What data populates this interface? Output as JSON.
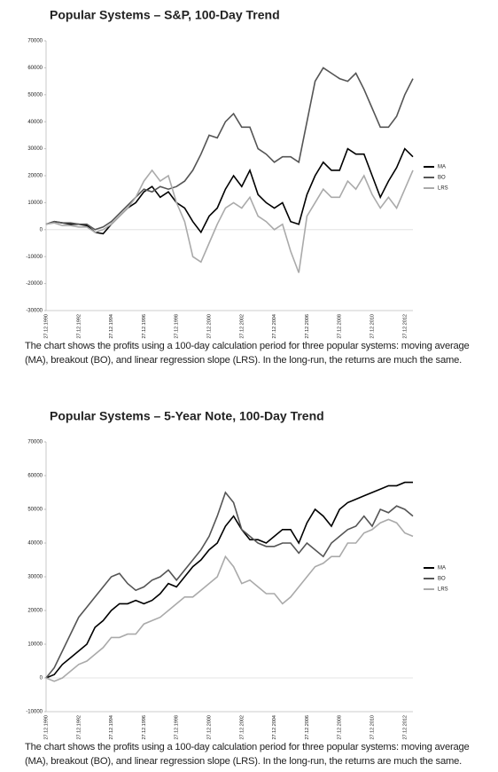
{
  "chart_data": [
    {
      "type": "line",
      "title": "Popular Systems – S&P, 100-Day Trend",
      "categories": [
        "27.12.1990",
        null,
        null,
        null,
        "27.12.1992",
        null,
        null,
        null,
        "27.12.1994",
        null,
        null,
        null,
        "27.12.1996",
        null,
        null,
        null,
        "27.12.1998",
        null,
        null,
        null,
        "27.12.2000",
        null,
        null,
        null,
        "27.12.2002",
        null,
        null,
        null,
        "27.12.2004",
        null,
        null,
        null,
        "27.12.2006",
        null,
        null,
        null,
        "27.12.2008",
        null,
        null,
        null,
        "27.12.2010",
        null,
        null,
        null,
        "27.12.2012",
        null
      ],
      "series": [
        {
          "name": "MA",
          "color": "#000000",
          "values": [
            2000,
            3000,
            2500,
            2000,
            2000,
            1500,
            -1000,
            -1500,
            2000,
            5000,
            8000,
            10000,
            14000,
            16000,
            12000,
            14000,
            10000,
            8000,
            3000,
            -1000,
            5000,
            8000,
            15000,
            20000,
            16000,
            22000,
            13000,
            10000,
            8000,
            10000,
            3000,
            2000,
            13000,
            20000,
            25000,
            22000,
            22000,
            30000,
            28000,
            28000,
            20000,
            12000,
            18000,
            23000,
            30000,
            27000
          ]
        },
        {
          "name": "BO",
          "color": "#555555",
          "values": [
            2000,
            3000,
            2500,
            2500,
            2000,
            2000,
            0,
            1000,
            3000,
            6000,
            9000,
            12000,
            15000,
            14000,
            16000,
            15000,
            16000,
            18000,
            22000,
            28000,
            35000,
            34000,
            40000,
            43000,
            38000,
            38000,
            30000,
            28000,
            25000,
            27000,
            27000,
            25000,
            40000,
            55000,
            60000,
            58000,
            56000,
            55000,
            58000,
            52000,
            45000,
            38000,
            38000,
            42000,
            50000,
            56000
          ]
        },
        {
          "name": "LRS",
          "color": "#aaaaaa",
          "values": [
            2000,
            2500,
            1500,
            1500,
            1000,
            1000,
            -1000,
            0,
            2000,
            5000,
            8000,
            12000,
            18000,
            22000,
            18000,
            20000,
            10000,
            3000,
            -10000,
            -12000,
            -5000,
            2000,
            8000,
            10000,
            8000,
            12000,
            5000,
            3000,
            0,
            2000,
            -8000,
            -16000,
            5000,
            10000,
            15000,
            12000,
            12000,
            18000,
            15000,
            20000,
            13000,
            8000,
            12000,
            8000,
            15000,
            22000
          ]
        }
      ],
      "ylim": [
        -30000,
        70000
      ],
      "yticks": [
        -30000,
        -20000,
        -10000,
        0,
        10000,
        20000,
        30000,
        40000,
        50000,
        60000,
        70000
      ],
      "grid": false,
      "legend": "right",
      "caption": "The chart shows the profits using a 100-day calculation period for three popular systems: moving average (MA), breakout (BO), and linear regression slope (LRS). In the long-run, the returns are much the same."
    },
    {
      "type": "line",
      "title": "Popular Systems – 5-Year Note, 100-Day Trend",
      "categories": [
        "27.12.1990",
        null,
        null,
        null,
        "27.12.1992",
        null,
        null,
        null,
        "27.12.1994",
        null,
        null,
        null,
        "27.12.1996",
        null,
        null,
        null,
        "27.12.1998",
        null,
        null,
        null,
        "27.12.2000",
        null,
        null,
        null,
        "27.12.2002",
        null,
        null,
        null,
        "27.12.2004",
        null,
        null,
        null,
        "27.12.2006",
        null,
        null,
        null,
        "27.12.2008",
        null,
        null,
        null,
        "27.12.2010",
        null,
        null,
        null,
        "27.12.2012",
        null
      ],
      "series": [
        {
          "name": "MA",
          "color": "#000000",
          "values": [
            0,
            1000,
            4000,
            6000,
            8000,
            10000,
            15000,
            17000,
            20000,
            22000,
            22000,
            23000,
            22000,
            23000,
            25000,
            28000,
            27000,
            30000,
            33000,
            35000,
            38000,
            40000,
            45000,
            48000,
            44000,
            41000,
            41000,
            40000,
            42000,
            44000,
            44000,
            40000,
            46000,
            50000,
            48000,
            45000,
            50000,
            52000,
            53000,
            54000,
            55000,
            56000,
            57000,
            57000,
            58000,
            58000
          ]
        },
        {
          "name": "BO",
          "color": "#555555",
          "values": [
            0,
            3000,
            8000,
            13000,
            18000,
            21000,
            24000,
            27000,
            30000,
            31000,
            28000,
            26000,
            27000,
            29000,
            30000,
            32000,
            29000,
            32000,
            35000,
            38000,
            42000,
            48000,
            55000,
            52000,
            44000,
            42000,
            40000,
            39000,
            39000,
            40000,
            40000,
            37000,
            40000,
            38000,
            36000,
            40000,
            42000,
            44000,
            45000,
            48000,
            45000,
            50000,
            49000,
            51000,
            50000,
            48000
          ]
        },
        {
          "name": "LRS",
          "color": "#aaaaaa",
          "values": [
            0,
            -1000,
            0,
            2000,
            4000,
            5000,
            7000,
            9000,
            12000,
            12000,
            13000,
            13000,
            16000,
            17000,
            18000,
            20000,
            22000,
            24000,
            24000,
            26000,
            28000,
            30000,
            36000,
            33000,
            28000,
            29000,
            27000,
            25000,
            25000,
            22000,
            24000,
            27000,
            30000,
            33000,
            34000,
            36000,
            36000,
            40000,
            40000,
            43000,
            44000,
            46000,
            47000,
            46000,
            43000,
            42000
          ]
        }
      ],
      "ylim": [
        -10000,
        70000
      ],
      "yticks": [
        -10000,
        0,
        10000,
        20000,
        30000,
        40000,
        50000,
        60000,
        70000
      ],
      "grid": false,
      "legend": "right",
      "caption": "The chart shows the profits using a 100-day calculation period for three popular systems: moving average (MA), breakout (BO), and linear regression slope (LRS). In the long-run, the returns are much the same."
    }
  ]
}
